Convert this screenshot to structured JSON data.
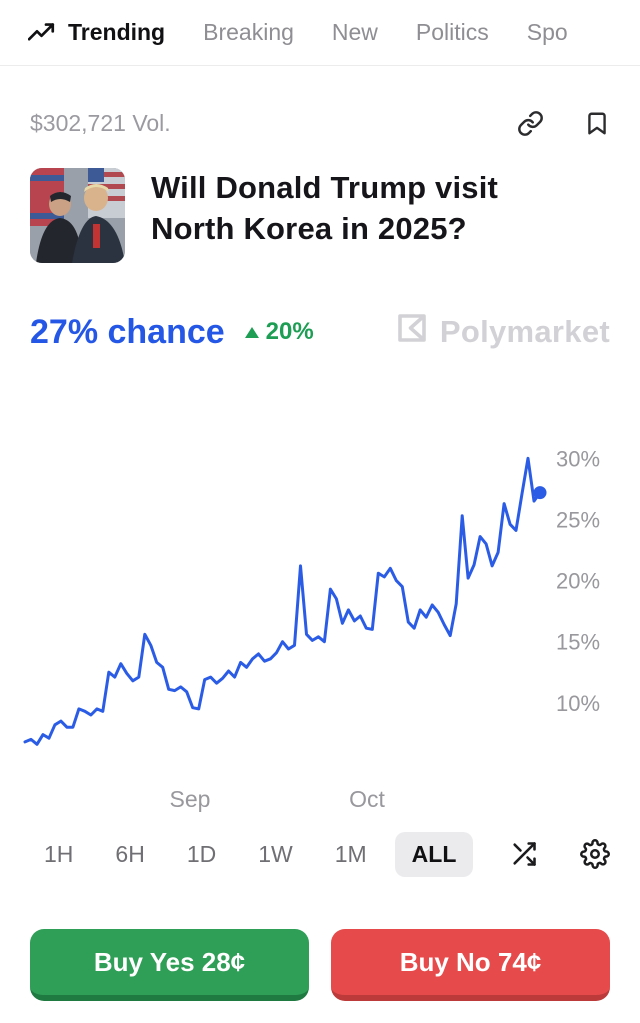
{
  "nav": {
    "items": [
      {
        "label": "Trending",
        "active": true
      },
      {
        "label": "Breaking",
        "active": false
      },
      {
        "label": "New",
        "active": false
      },
      {
        "label": "Politics",
        "active": false
      },
      {
        "label": "Spo",
        "active": false
      }
    ]
  },
  "market": {
    "volume": "$302,721 Vol.",
    "title": "Will Donald Trump visit North Korea in 2025?",
    "chance": "27% chance",
    "change": "20%",
    "brand": "Polymarket"
  },
  "chart_data": {
    "type": "line",
    "title": "",
    "series_name": "Yes probability",
    "unit": "%",
    "ylim": [
      4.5,
      31.5
    ],
    "yticks": [
      10,
      15,
      20,
      25,
      30
    ],
    "xticks": [
      {
        "label": "Sep",
        "pos": 0.32
      },
      {
        "label": "Oct",
        "pos": 0.665
      }
    ],
    "line_color": "#2b5ce5",
    "end_value": 27,
    "values": [
      6.8,
      7.0,
      6.6,
      7.4,
      7.1,
      8.2,
      8.5,
      8.0,
      8.0,
      9.5,
      9.3,
      9.0,
      9.5,
      9.3,
      12.5,
      12.1,
      13.2,
      12.4,
      11.8,
      12.1,
      15.6,
      14.7,
      13.3,
      12.9,
      11.1,
      11.0,
      11.3,
      10.9,
      9.6,
      9.5,
      11.9,
      12.1,
      11.6,
      12.0,
      12.6,
      12.1,
      13.3,
      12.9,
      13.6,
      14.0,
      13.4,
      13.6,
      14.1,
      15.0,
      14.4,
      14.7,
      21.2,
      15.6,
      15.1,
      15.4,
      15.0,
      19.3,
      18.5,
      16.5,
      17.6,
      16.7,
      17.1,
      16.1,
      16.0,
      20.6,
      20.3,
      21.0,
      20.0,
      19.5,
      16.6,
      16.1,
      17.6,
      17.0,
      18.0,
      17.4,
      16.4,
      15.5,
      18.1,
      25.3,
      20.2,
      21.3,
      23.6,
      23.0,
      21.2,
      22.3,
      26.3,
      24.6,
      24.1,
      27.1,
      30.0,
      26.5,
      27.2
    ]
  },
  "timeframes": {
    "options": [
      "1H",
      "6H",
      "1D",
      "1W",
      "1M",
      "ALL"
    ],
    "selected": "ALL"
  },
  "actions": {
    "buy_yes_label": "Buy Yes 28¢",
    "buy_no_label": "Buy No 74¢"
  },
  "colors": {
    "accent_blue": "#2b5ce5",
    "chance_blue": "#2457e5",
    "positive_green": "#1d9e54",
    "buy_yes_green": "#2f9e57",
    "buy_no_red": "#e64a4a",
    "watermark_gray": "#d2d2d6"
  }
}
